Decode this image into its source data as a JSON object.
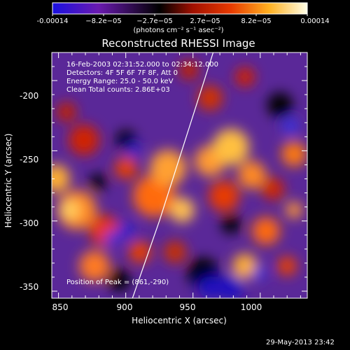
{
  "colorbar": {
    "labels": [
      "-0.00014",
      "−8.2e−05",
      "−2.7e−05",
      "2.7e−05",
      "8.2e−05",
      "0.00014"
    ],
    "units": "(photons cm⁻² s⁻¹ asec⁻²)",
    "colors": [
      "#1a10d8",
      "#7a1aa0",
      "#000000",
      "#c81a00",
      "#ff7a00",
      "#ffe050",
      "#ffffff"
    ]
  },
  "chart_data": {
    "type": "heatmap",
    "title": "Reconstructed RHESSI Image",
    "xlabel": "Heliocentric X (arcsec)",
    "ylabel": "Heliocentric Y (arcsec)",
    "xlim": [
      845,
      1035
    ],
    "ylim": [
      -355,
      -180
    ],
    "xticks": [
      850,
      900,
      950,
      1000
    ],
    "yticks": [
      -200,
      -250,
      -300,
      -350
    ],
    "colorbar_range": [
      -0.00014,
      0.00014
    ],
    "annotations": [
      "16-Feb-2003 02:31:52.000 to 02:34:12.000",
      "Detectors: 4F 5F 6F 7F 8F, Att 0",
      "Energy Range: 25.0 - 50.0 keV",
      "Clean     Total counts: 2.86E+03"
    ],
    "peak_label": "Position of Peak = (861,-290)",
    "peak": [
      861,
      -290
    ],
    "limb_arc": [
      [
        905,
        -355
      ],
      [
        925,
        -300
      ],
      [
        940,
        -255
      ],
      [
        955,
        -210
      ],
      [
        965,
        -180
      ]
    ]
  },
  "timestamp": "29-May-2013 23:42"
}
